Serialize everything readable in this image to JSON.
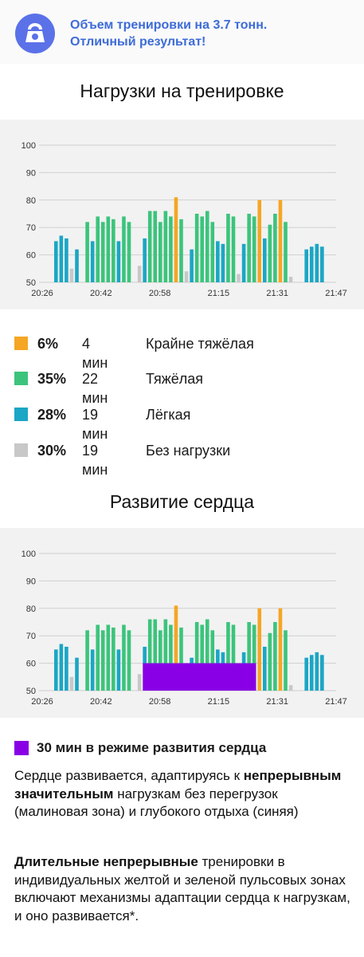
{
  "banner": {
    "icon": "kettlebell-icon",
    "accent_color": "#5b71e8",
    "text_color": "#3d6bd8",
    "line1": "Объем тренировки на 3.7 тонн.",
    "line2": "Отличный результат!"
  },
  "load_section": {
    "title": "Нагрузки на тренировке"
  },
  "heart_section": {
    "title": "Развитие сердца"
  },
  "legend": [
    {
      "color": "#f5a623",
      "pct": "6%",
      "mins": "4 мин",
      "label": "Крайне тяжёлая"
    },
    {
      "color": "#3cc47c",
      "pct": "35%",
      "mins": "22 мин",
      "label": "Тяжёлая"
    },
    {
      "color": "#1aa6c4",
      "pct": "28%",
      "mins": "19 мин",
      "label": "Лёгкая"
    },
    {
      "color": "#c8c8c8",
      "pct": "30%",
      "mins": "19 мин",
      "label": "Без нагрузки"
    }
  ],
  "heart_dev": {
    "color": "#8a00e6",
    "label": "30 мин в режиме развития сердца",
    "p1_a": "Сердце развивается, адаптируясь к ",
    "p1_b": "непрерывным значительным",
    "p1_c": " нагрузкам без перегрузок (малиновая зона) и глубокого отдыха (синяя)",
    "p2_a": "Длительные непрерывные",
    "p2_b": " тренировки в индивидуальных желтой и зеленой пульсовых зонах включают механизмы адаптации сердца к нагрузкам, и оно развивается*."
  },
  "chart_data": [
    {
      "type": "bar",
      "y_ticks": [
        "100",
        "90",
        "80",
        "70",
        "60",
        "50"
      ],
      "ylim": [
        50,
        100
      ],
      "x_ticks": [
        "20:26",
        "20:42",
        "20:58",
        "21:15",
        "21:31",
        "21:47"
      ],
      "bar_colors": {
        "y": "#f5a623",
        "g": "#3cc47c",
        "b": "#1aa6c4",
        "r": "#c8c8c8"
      },
      "bars": [
        {
          "v": 65,
          "c": "b"
        },
        {
          "v": 67,
          "c": "b"
        },
        {
          "v": 66,
          "c": "b"
        },
        {
          "v": 55,
          "c": "r"
        },
        {
          "v": 62,
          "c": "b"
        },
        {
          "v": 50,
          "c": "r"
        },
        {
          "v": 72,
          "c": "g"
        },
        {
          "v": 65,
          "c": "b"
        },
        {
          "v": 74,
          "c": "g"
        },
        {
          "v": 72,
          "c": "g"
        },
        {
          "v": 74,
          "c": "g"
        },
        {
          "v": 73,
          "c": "g"
        },
        {
          "v": 65,
          "c": "b"
        },
        {
          "v": 74,
          "c": "g"
        },
        {
          "v": 72,
          "c": "g"
        },
        {
          "v": 50,
          "c": "r"
        },
        {
          "v": 56,
          "c": "r"
        },
        {
          "v": 66,
          "c": "b"
        },
        {
          "v": 76,
          "c": "g"
        },
        {
          "v": 76,
          "c": "g"
        },
        {
          "v": 72,
          "c": "g"
        },
        {
          "v": 76,
          "c": "g"
        },
        {
          "v": 74,
          "c": "g"
        },
        {
          "v": 81,
          "c": "y"
        },
        {
          "v": 73,
          "c": "g"
        },
        {
          "v": 54,
          "c": "r"
        },
        {
          "v": 62,
          "c": "b"
        },
        {
          "v": 75,
          "c": "g"
        },
        {
          "v": 74,
          "c": "g"
        },
        {
          "v": 76,
          "c": "g"
        },
        {
          "v": 72,
          "c": "g"
        },
        {
          "v": 65,
          "c": "b"
        },
        {
          "v": 64,
          "c": "b"
        },
        {
          "v": 75,
          "c": "g"
        },
        {
          "v": 74,
          "c": "g"
        },
        {
          "v": 53,
          "c": "r"
        },
        {
          "v": 64,
          "c": "b"
        },
        {
          "v": 75,
          "c": "g"
        },
        {
          "v": 74,
          "c": "g"
        },
        {
          "v": 80,
          "c": "y"
        },
        {
          "v": 66,
          "c": "b"
        },
        {
          "v": 71,
          "c": "g"
        },
        {
          "v": 75,
          "c": "g"
        },
        {
          "v": 80,
          "c": "y"
        },
        {
          "v": 72,
          "c": "g"
        },
        {
          "v": 52,
          "c": "r"
        },
        {
          "v": 50,
          "c": "r"
        },
        {
          "v": 50,
          "c": "r"
        },
        {
          "v": 62,
          "c": "b"
        },
        {
          "v": 63,
          "c": "b"
        },
        {
          "v": 64,
          "c": "b"
        },
        {
          "v": 63,
          "c": "b"
        }
      ]
    },
    {
      "type": "bar",
      "same_bars_as_first_chart": true,
      "y_ticks": [
        "100",
        "90",
        "80",
        "70",
        "60",
        "50"
      ],
      "ylim": [
        50,
        100
      ],
      "x_ticks": [
        "20:26",
        "20:42",
        "20:58",
        "21:15",
        "21:31",
        "21:47"
      ],
      "heart_zone_band": {
        "color": "#8a00e6",
        "value": 60,
        "from_bar": 17,
        "to_bar": 38
      }
    }
  ]
}
